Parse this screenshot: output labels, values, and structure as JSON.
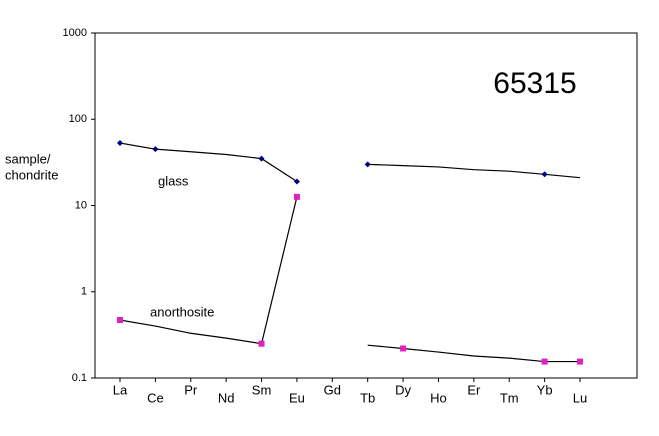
{
  "chart_data": {
    "type": "line",
    "title": "65315",
    "y_label_lines": [
      "sample/",
      "chondrite"
    ],
    "categories": [
      "La",
      "Ce",
      "Pr",
      "Nd",
      "Sm",
      "Eu",
      "Gd",
      "Tb",
      "Dy",
      "Ho",
      "Er",
      "Tm",
      "Yb",
      "Lu"
    ],
    "series": [
      {
        "name": "glass",
        "color": "#000080",
        "values": [
          53,
          45,
          42,
          39,
          35,
          19,
          null,
          30,
          29,
          28,
          26,
          25,
          23,
          21
        ],
        "marked": [
          true,
          true,
          false,
          false,
          true,
          true,
          false,
          true,
          false,
          false,
          false,
          false,
          true,
          false
        ]
      },
      {
        "name": "anorthosite",
        "color": "#e020c0",
        "values": [
          0.47,
          0.4,
          0.33,
          0.29,
          0.25,
          12.6,
          null,
          0.24,
          0.22,
          0.2,
          0.18,
          0.17,
          0.155,
          0.155
        ],
        "marked": [
          true,
          false,
          false,
          false,
          true,
          true,
          false,
          false,
          true,
          false,
          false,
          false,
          true,
          true
        ]
      }
    ],
    "ylim": [
      0.1,
      1000
    ],
    "yticks": [
      0.1,
      1,
      10,
      100,
      1000
    ],
    "log_y": true
  }
}
